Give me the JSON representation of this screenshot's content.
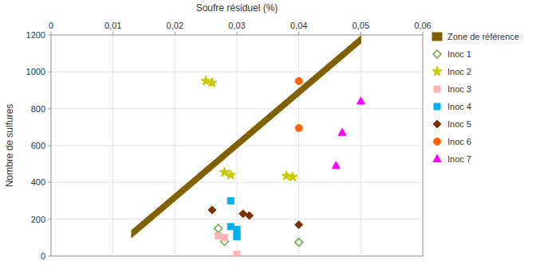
{
  "chart_data": {
    "type": "scatter",
    "x_label": "Soufre résiduel (%)",
    "y_label": "Nombre de sulfures",
    "xlim": [
      0,
      0.06
    ],
    "ylim": [
      0,
      1200
    ],
    "xticks": [
      0,
      {
        "value": 0.01,
        "label": "0,01"
      },
      {
        "value": 0.02,
        "label": "0,02"
      },
      {
        "value": 0.03,
        "label": "0,03"
      },
      {
        "value": 0.04,
        "label": "0,04"
      },
      {
        "value": 0.05,
        "label": "0,05"
      },
      {
        "value": 0.06,
        "label": "0,06"
      }
    ],
    "yticks": [
      0,
      200,
      400,
      600,
      800,
      1000,
      1200
    ],
    "grid": true,
    "legend": "right",
    "series": [
      {
        "name": "Zone de référence",
        "type": "area",
        "color": "#806000",
        "x": [
          0.013,
          0.013,
          0.05,
          0.05
        ],
        "values": [
          100,
          140,
          1195,
          1155
        ]
      },
      {
        "name": "Inoc 1",
        "color": "#70ad47",
        "marker": "open-diamond",
        "x": [
          0.027,
          0.028,
          0.04
        ],
        "values": [
          150,
          80,
          75
        ]
      },
      {
        "name": "Inoc 2",
        "color": "#c8c800",
        "marker": "star",
        "x": [
          0.025,
          0.026,
          0.028,
          0.029,
          0.038,
          0.039
        ],
        "values": [
          950,
          940,
          455,
          440,
          435,
          430
        ]
      },
      {
        "name": "Inoc 3",
        "color": "#ffb3b3",
        "marker": "square",
        "x": [
          0.027,
          0.028,
          0.03
        ],
        "values": [
          110,
          100,
          10
        ]
      },
      {
        "name": "Inoc 4",
        "color": "#00b0f0",
        "marker": "square",
        "x": [
          0.029,
          0.029,
          0.03,
          0.03,
          0.03
        ],
        "values": [
          300,
          160,
          145,
          110,
          105
        ]
      },
      {
        "name": "Inoc 5",
        "color": "#7b3100",
        "marker": "diamond",
        "x": [
          0.026,
          0.031,
          0.032,
          0.04
        ],
        "values": [
          250,
          230,
          220,
          170
        ]
      },
      {
        "name": "Inoc 6",
        "color": "#ff6600",
        "marker": "circle",
        "x": [
          0.04,
          0.04
        ],
        "values": [
          695,
          950
        ]
      },
      {
        "name": "Inoc 7",
        "color": "#ff00ff",
        "marker": "triangle",
        "x": [
          0.046,
          0.047,
          0.05
        ],
        "values": [
          490,
          670,
          840
        ]
      }
    ]
  }
}
